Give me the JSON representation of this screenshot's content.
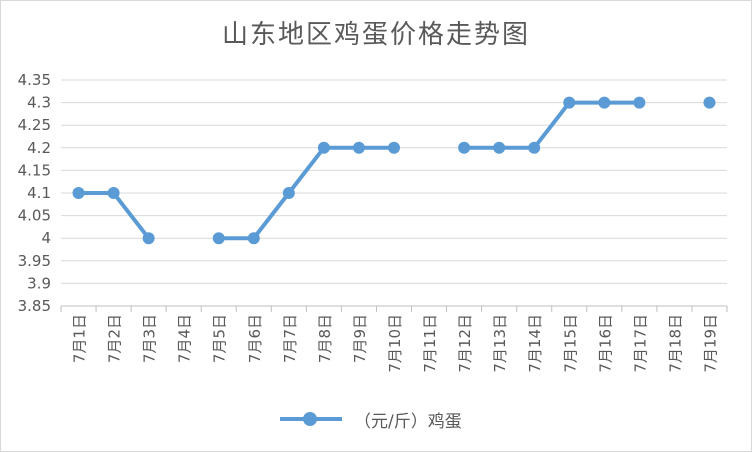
{
  "chart_data": {
    "type": "line",
    "title": "山东地区鸡蛋价格走势图",
    "categories": [
      "7月1日",
      "7月2日",
      "7月3日",
      "7月4日",
      "7月5日",
      "7月6日",
      "7月7日",
      "7月8日",
      "7月9日",
      "7月10日",
      "7月11日",
      "7月12日",
      "7月13日",
      "7月14日",
      "7月15日",
      "7月16日",
      "7月17日",
      "7月18日",
      "7月19日"
    ],
    "series": [
      {
        "name": "（元/斤）鸡蛋",
        "color": "#5b9bd5",
        "values": [
          4.1,
          4.1,
          4.0,
          null,
          4.0,
          4.0,
          4.1,
          4.2,
          4.2,
          4.2,
          null,
          4.2,
          4.2,
          4.2,
          4.3,
          4.3,
          4.3,
          null,
          4.3
        ]
      }
    ],
    "ylim": [
      3.85,
      4.35
    ],
    "yticks": [
      "4.35",
      "4.3",
      "4.25",
      "4.2",
      "4.15",
      "4.1",
      "4.05",
      "4",
      "3.95",
      "3.9",
      "3.85"
    ],
    "grid": true,
    "legend_position": "bottom"
  }
}
